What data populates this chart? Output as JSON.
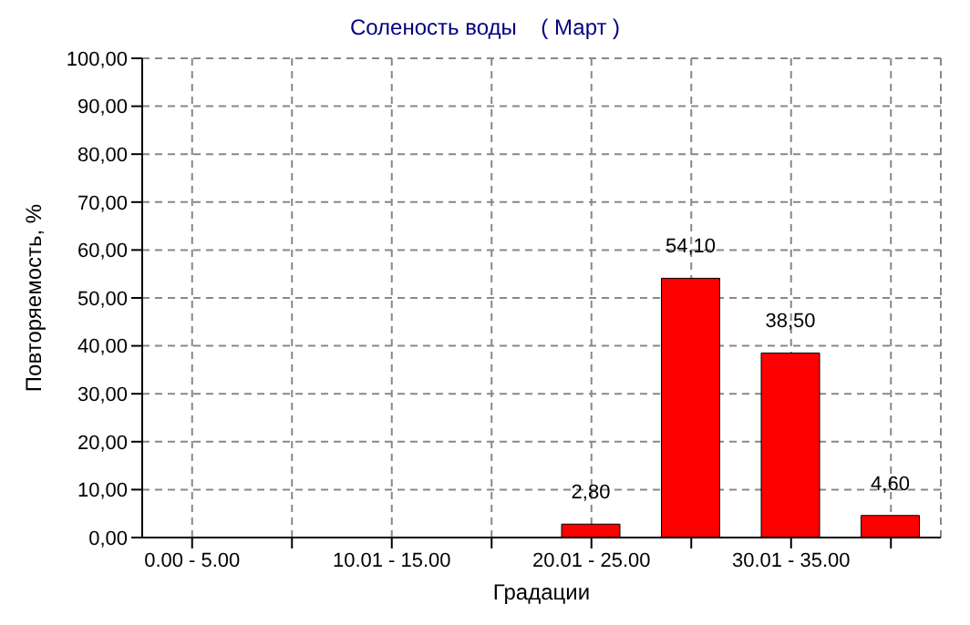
{
  "chart_data": {
    "type": "bar",
    "title": "Соленость воды    ( Март )",
    "xlabel": "Градации",
    "ylabel": "Повторяемость, %",
    "categories": [
      "0.00 - 5.00",
      null,
      "10.01 - 15.00",
      null,
      "20.01 - 25.00",
      null,
      "30.01 - 35.00",
      null
    ],
    "values": [
      0,
      0,
      0,
      0,
      2.8,
      54.1,
      38.5,
      4.6
    ],
    "value_labels": [
      null,
      null,
      null,
      null,
      "2,80",
      "54,10",
      "38,50",
      "4,60"
    ],
    "color": "#ff0000",
    "ylim": [
      0,
      100
    ],
    "yticks": [
      {
        "value": 0,
        "label": "0,00"
      },
      {
        "value": 10,
        "label": "10,00"
      },
      {
        "value": 20,
        "label": "20,00"
      },
      {
        "value": 30,
        "label": "30,00"
      },
      {
        "value": 40,
        "label": "40,00"
      },
      {
        "value": 50,
        "label": "50,00"
      },
      {
        "value": 60,
        "label": "60,00"
      },
      {
        "value": 70,
        "label": "70,00"
      },
      {
        "value": 80,
        "label": "80,00"
      },
      {
        "value": 90,
        "label": "90,00"
      },
      {
        "value": 100,
        "label": "100,00"
      }
    ],
    "grid": true
  }
}
